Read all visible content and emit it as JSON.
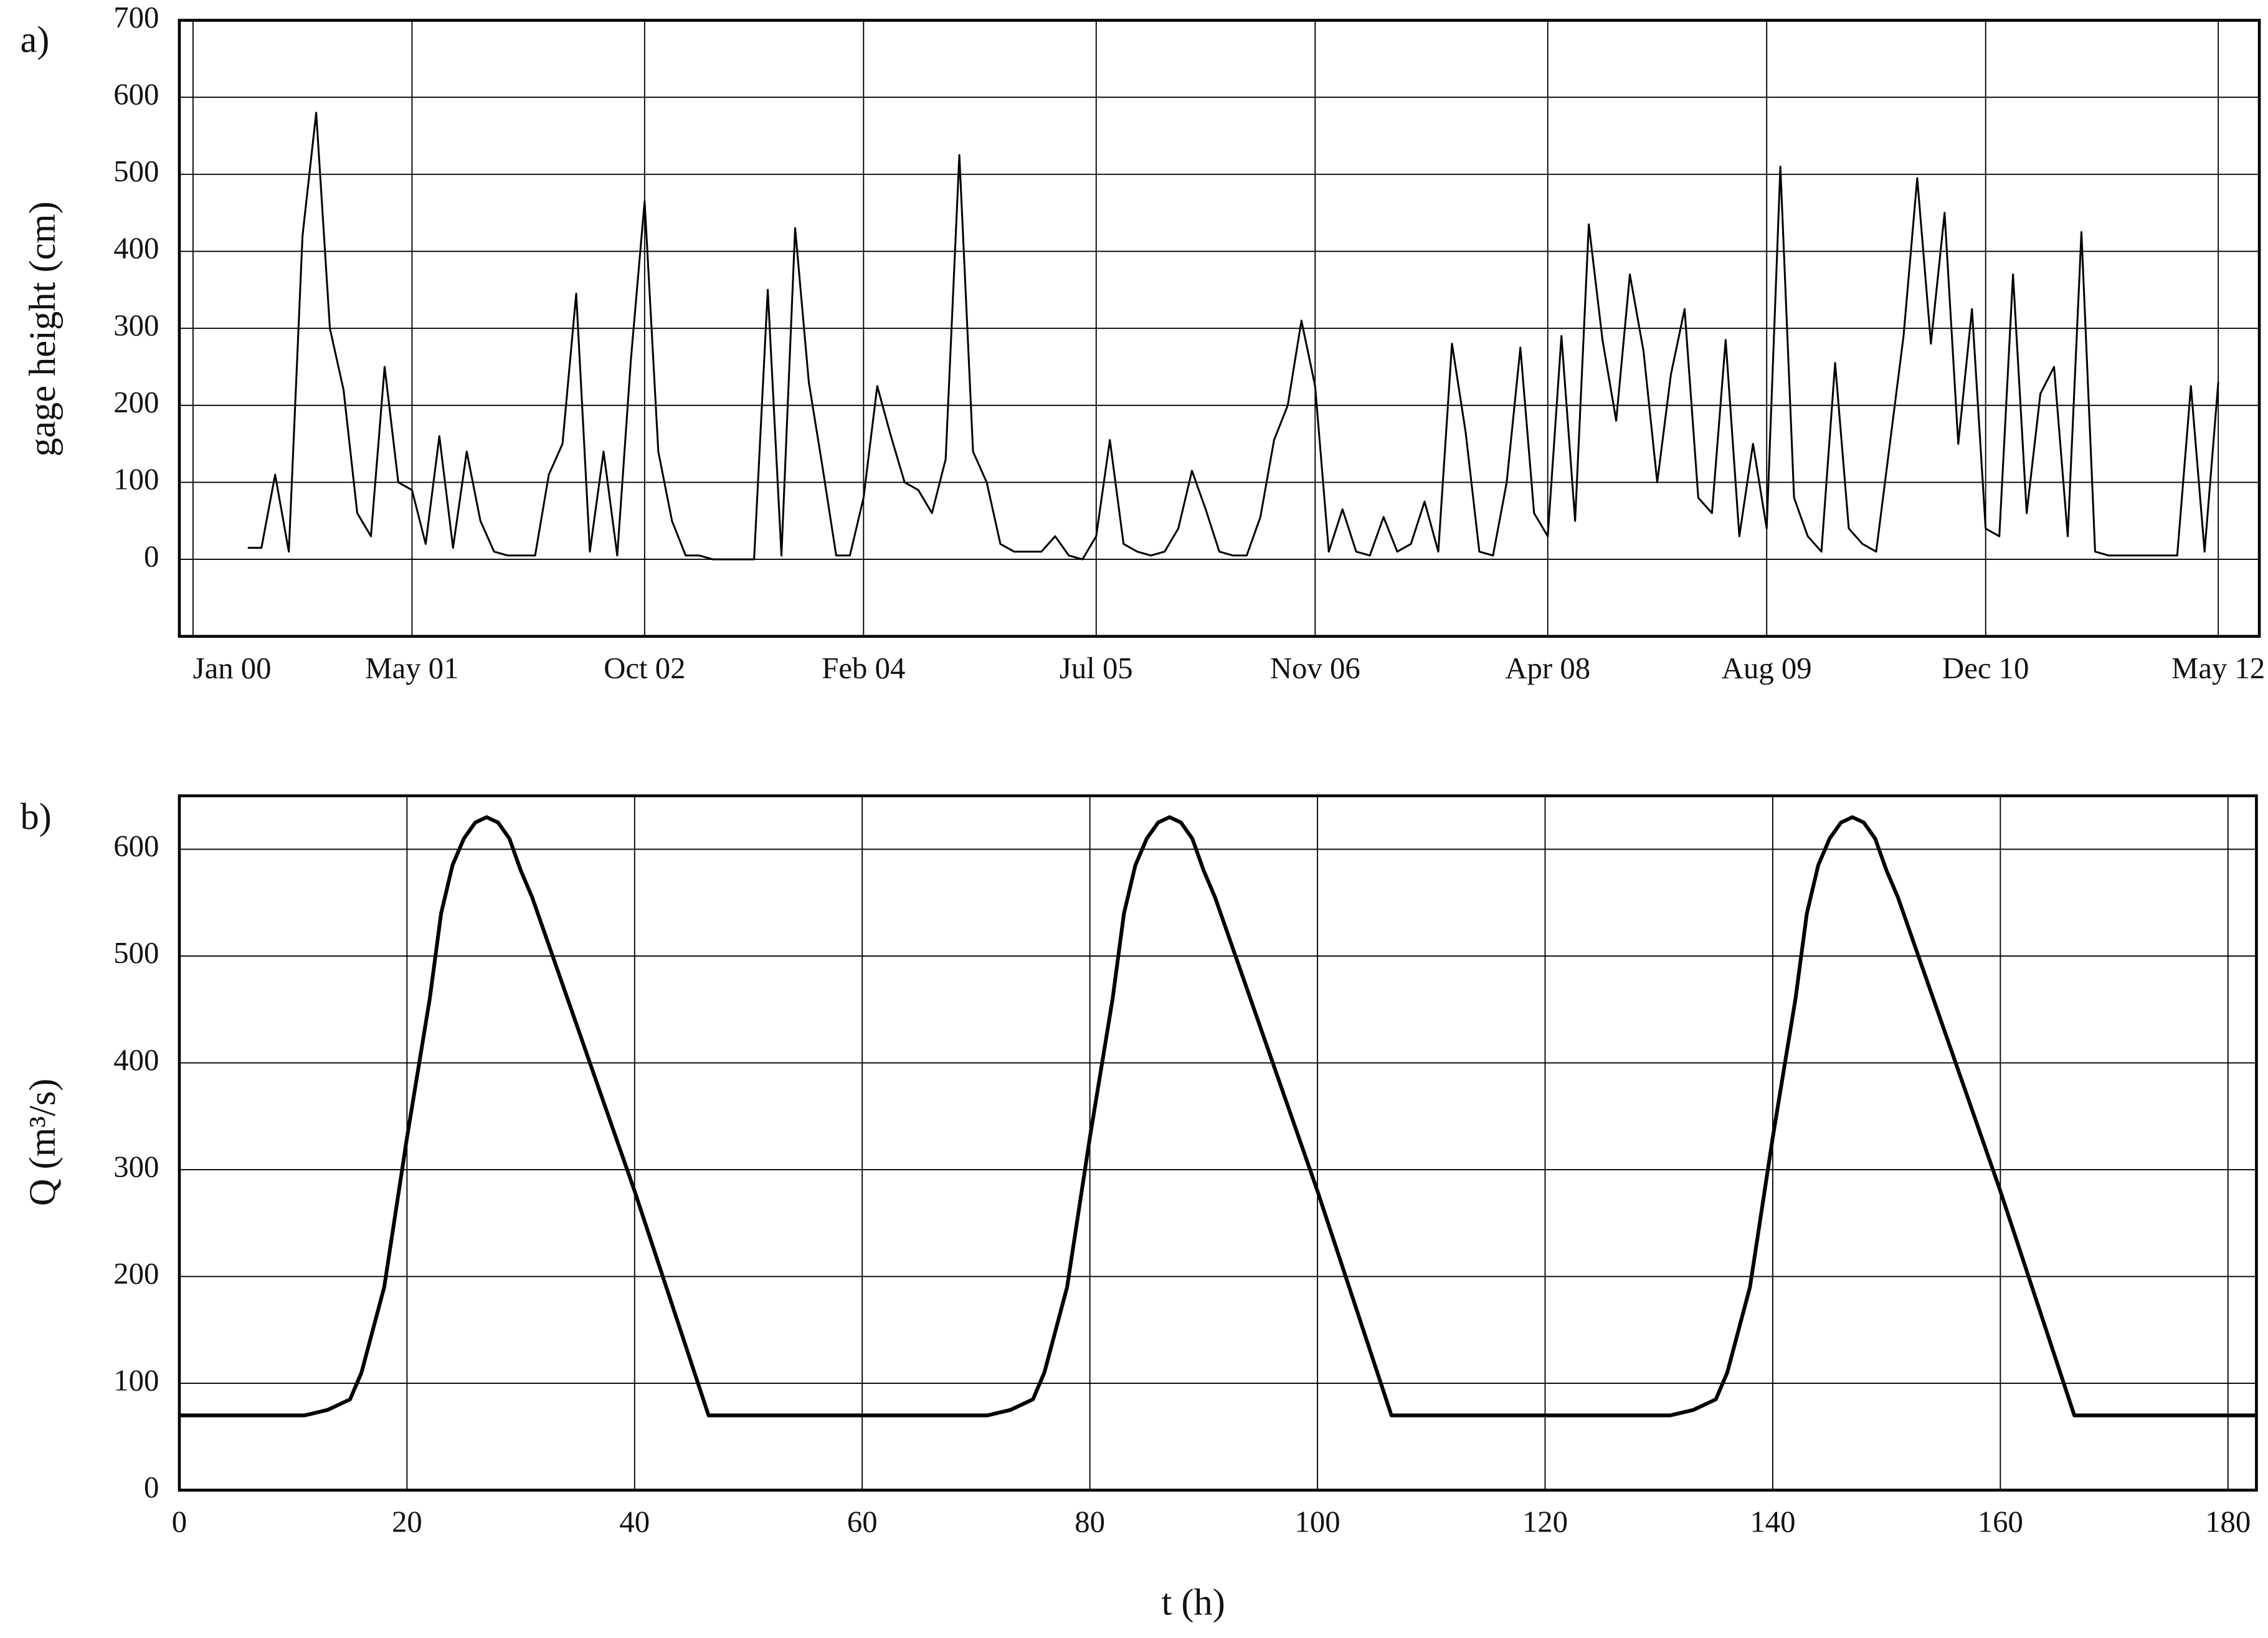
{
  "chart_data": [
    {
      "type": "line",
      "panel_label": "a)",
      "y_label": "gage height (cm)",
      "color": "#000000",
      "grid": true,
      "xlim": [
        "1999-12",
        "2012-08"
      ],
      "xticks": [
        {
          "value": "2000-01",
          "label": "Jan 00"
        },
        {
          "value": "2001-05",
          "label": "May 01"
        },
        {
          "value": "2002-10",
          "label": "Oct 02"
        },
        {
          "value": "2004-02",
          "label": "Feb 04"
        },
        {
          "value": "2005-07",
          "label": "Jul 05"
        },
        {
          "value": "2006-11",
          "label": "Nov 06"
        },
        {
          "value": "2008-04",
          "label": "Apr 08"
        },
        {
          "value": "2009-08",
          "label": "Aug 09"
        },
        {
          "value": "2010-12",
          "label": "Dec 10"
        },
        {
          "value": "2012-05",
          "label": "May 12"
        }
      ],
      "ylim": [
        -100,
        700
      ],
      "yticks": [
        0,
        100,
        200,
        300,
        400,
        500,
        600,
        700
      ],
      "x": [
        "2000-05",
        "2000-06",
        "2000-07",
        "2000-08",
        "2000-09",
        "2000-10",
        "2000-11",
        "2000-12",
        "2001-01",
        "2001-02",
        "2001-03",
        "2001-04",
        "2001-05",
        "2001-06",
        "2001-07",
        "2001-08",
        "2001-09",
        "2001-10",
        "2001-11",
        "2001-12",
        "2002-01",
        "2002-02",
        "2002-03",
        "2002-04",
        "2002-05",
        "2002-06",
        "2002-07",
        "2002-08",
        "2002-09",
        "2002-10",
        "2002-11",
        "2002-12",
        "2003-01",
        "2003-02",
        "2003-03",
        "2003-04",
        "2003-05",
        "2003-06",
        "2003-07",
        "2003-08",
        "2003-09",
        "2003-10",
        "2003-11",
        "2003-12",
        "2004-01",
        "2004-02",
        "2004-03",
        "2004-04",
        "2004-05",
        "2004-06",
        "2004-07",
        "2004-08",
        "2004-09",
        "2004-10",
        "2004-11",
        "2004-12",
        "2005-01",
        "2005-02",
        "2005-03",
        "2005-04",
        "2005-05",
        "2005-06",
        "2005-07",
        "2005-08",
        "2005-09",
        "2005-10",
        "2005-11",
        "2005-12",
        "2006-01",
        "2006-02",
        "2006-03",
        "2006-04",
        "2006-05",
        "2006-06",
        "2006-07",
        "2006-08",
        "2006-09",
        "2006-10",
        "2006-11",
        "2006-12",
        "2007-01",
        "2007-02",
        "2007-03",
        "2007-04",
        "2007-05",
        "2007-06",
        "2007-07",
        "2007-08",
        "2007-09",
        "2007-10",
        "2007-11",
        "2007-12",
        "2008-01",
        "2008-02",
        "2008-03",
        "2008-04",
        "2008-05",
        "2008-06",
        "2008-07",
        "2008-08",
        "2008-09",
        "2008-10",
        "2008-11",
        "2008-12",
        "2009-01",
        "2009-02",
        "2009-03",
        "2009-04",
        "2009-05",
        "2009-06",
        "2009-07",
        "2009-08",
        "2009-09",
        "2009-10",
        "2009-11",
        "2009-12",
        "2010-01",
        "2010-02",
        "2010-03",
        "2010-04",
        "2010-05",
        "2010-06",
        "2010-07",
        "2010-08",
        "2010-09",
        "2010-10",
        "2010-11",
        "2010-12",
        "2011-01",
        "2011-02",
        "2011-03",
        "2011-04",
        "2011-05",
        "2011-06",
        "2011-07",
        "2011-08",
        "2011-09",
        "2011-10",
        "2011-11",
        "2011-12",
        "2012-01",
        "2012-02",
        "2012-03",
        "2012-04",
        "2012-05"
      ],
      "values": [
        15,
        15,
        110,
        10,
        420,
        580,
        300,
        220,
        60,
        30,
        250,
        100,
        90,
        20,
        160,
        15,
        140,
        50,
        10,
        5,
        5,
        5,
        110,
        150,
        345,
        10,
        140,
        5,
        260,
        465,
        140,
        50,
        5,
        5,
        0,
        0,
        0,
        0,
        350,
        5,
        430,
        230,
        120,
        5,
        5,
        80,
        225,
        160,
        100,
        90,
        60,
        130,
        525,
        140,
        100,
        20,
        10,
        10,
        10,
        30,
        5,
        0,
        30,
        155,
        20,
        10,
        5,
        10,
        40,
        115,
        65,
        10,
        5,
        5,
        55,
        155,
        200,
        310,
        225,
        10,
        65,
        10,
        5,
        55,
        10,
        20,
        75,
        10,
        280,
        165,
        10,
        5,
        100,
        275,
        60,
        30,
        290,
        50,
        435,
        285,
        180,
        370,
        270,
        100,
        240,
        325,
        80,
        60,
        285,
        30,
        150,
        40,
        510,
        80,
        30,
        10,
        255,
        40,
        20,
        10,
        150,
        290,
        495,
        280,
        450,
        150,
        325,
        40,
        30,
        370,
        60,
        215,
        250,
        30,
        425,
        10,
        5,
        5,
        5,
        5,
        5,
        5,
        225,
        10,
        230
      ]
    },
    {
      "type": "line",
      "panel_label": "b)",
      "y_label": "Q (m³/s)",
      "x_label": "t (h)",
      "color": "#000000",
      "grid": true,
      "xlim": [
        0,
        182.5
      ],
      "xticks": [
        0,
        20,
        40,
        60,
        80,
        100,
        120,
        140,
        160,
        180
      ],
      "ylim": [
        0,
        650
      ],
      "yticks": [
        0,
        100,
        200,
        300,
        400,
        500,
        600
      ],
      "x": [
        0,
        11,
        13,
        15,
        16,
        18,
        20,
        22,
        23,
        24,
        25,
        26,
        27,
        28,
        29,
        30,
        31,
        40,
        46.5,
        71,
        73,
        75,
        76,
        78,
        80,
        82,
        83,
        84,
        85,
        86,
        87,
        88,
        89,
        90,
        91,
        100,
        106.5,
        131,
        133,
        135,
        136,
        138,
        140,
        142,
        143,
        144,
        145,
        146,
        147,
        148,
        149,
        150,
        151,
        160,
        166.5,
        182.5
      ],
      "values": [
        70,
        70,
        75,
        85,
        110,
        190,
        330,
        460,
        540,
        585,
        610,
        625,
        630,
        625,
        610,
        580,
        555,
        280,
        70,
        70,
        75,
        85,
        110,
        190,
        330,
        460,
        540,
        585,
        610,
        625,
        630,
        625,
        610,
        580,
        555,
        280,
        70,
        70,
        75,
        85,
        110,
        190,
        330,
        460,
        540,
        585,
        610,
        625,
        630,
        625,
        610,
        580,
        555,
        280,
        70,
        70
      ]
    }
  ]
}
